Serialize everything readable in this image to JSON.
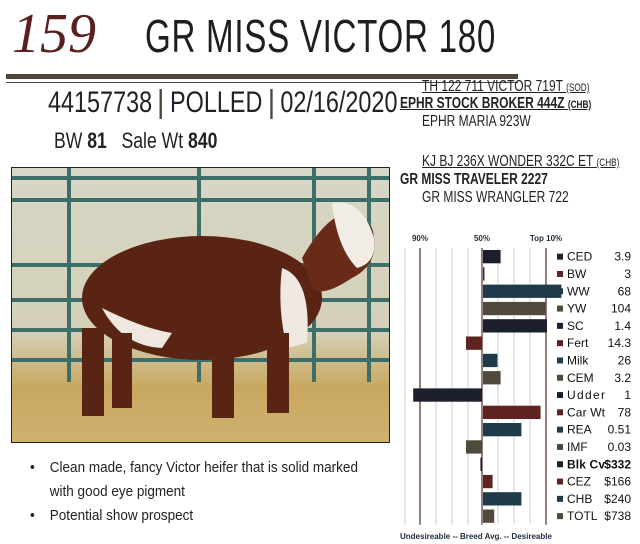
{
  "lot": "159",
  "name": "GR  MISS VICTOR 180",
  "registration": "44157738",
  "horn_status": "POLLED",
  "birth_date": "02/16/2020",
  "bw_label": "BW",
  "bw": "81",
  "sale_wt_label": "Sale Wt",
  "sale_wt": "840",
  "pedigree": {
    "sire_sire": "TH 122 711 VICTOR 719T",
    "sire_sire_tag": "(SOD)",
    "sire": "EPHR STOCK BROKER 444Z",
    "sire_tag": "(CHB)",
    "sire_dam": "EPHR MARIA 923W",
    "dam_sire": "KJ BJ 236X WONDER 332C ET",
    "dam_sire_tag": "(CHB)",
    "dam": "GR MISS TRAVELER 2227",
    "dam_dam": "GR MISS WRANGLER 722"
  },
  "comments": [
    "Clean made, fancy Victor heifer that is solid marked",
    "with good eye pigment",
    "Potential show prospect"
  ],
  "chart_data": {
    "type": "bar",
    "orientation": "horizontal",
    "axis_labels": [
      "90%",
      "50%",
      "Top 10%"
    ],
    "footer": "Undesireable -- Breed Avg. --  Desireable",
    "value_units": "percentile rank (bar drawn from 50% breed average line)",
    "categories": [
      "CED",
      "BW",
      "WW",
      "YW",
      "SC",
      "Fert",
      "Milk",
      "CEM",
      "Udder",
      "Car Wt",
      "REA",
      "IMF",
      "Blk Cv",
      "CEZ",
      "CHB",
      "TOTL"
    ],
    "epds": [
      "3.9",
      "3",
      "68",
      "104",
      "1.4",
      "14.3",
      "26",
      "3.2",
      "1",
      "78",
      "0.51",
      "0.03",
      "$332",
      "$166",
      "$240",
      "$738"
    ],
    "percentiles": [
      39,
      50,
      1,
      11,
      10,
      60,
      41,
      39,
      93,
      14,
      26,
      60,
      51,
      44,
      26,
      43
    ],
    "colors": [
      "#1c1f2e",
      "#5e2320",
      "#1f3b4a",
      "#4f4a3c"
    ]
  }
}
